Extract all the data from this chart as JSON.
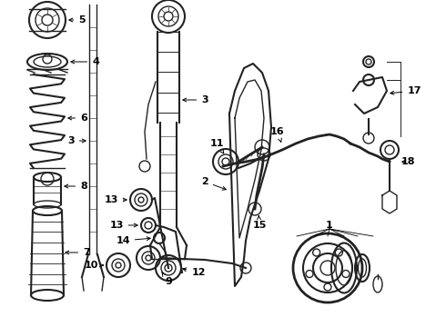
{
  "bg_color": "#ffffff",
  "line_color": "#222222",
  "label_color": "#000000",
  "figw": 4.9,
  "figh": 3.6,
  "dpi": 100
}
